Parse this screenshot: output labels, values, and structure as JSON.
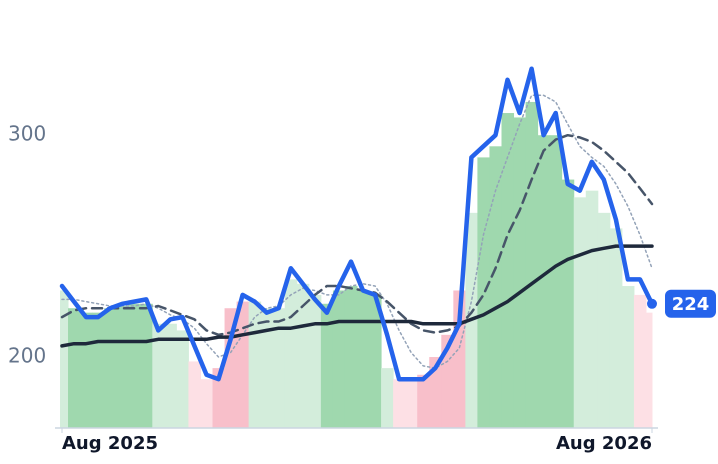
{
  "chart_data": {
    "type": "line",
    "categories": [
      "Aug 2025",
      null,
      null,
      null,
      null,
      null,
      null,
      null,
      null,
      null,
      null,
      null,
      null,
      null,
      null,
      null,
      null,
      null,
      null,
      null,
      null,
      null,
      null,
      null,
      null,
      null,
      null,
      null,
      null,
      null,
      null,
      null,
      null,
      null,
      null,
      null,
      null,
      null,
      null,
      null,
      null,
      null,
      null,
      null,
      null,
      null,
      null,
      null,
      null,
      "Aug 2026"
    ],
    "ylim": [
      168,
      356
    ],
    "yticks": [
      200,
      300
    ],
    "bars": {
      "values": [
        230,
        222,
        220,
        220,
        222,
        223,
        224,
        224,
        215,
        215,
        212,
        198,
        190,
        195,
        222,
        225,
        225,
        222,
        222,
        235,
        233,
        228,
        224,
        230,
        232,
        230,
        228,
        195,
        190,
        190,
        192,
        200,
        210,
        230,
        265,
        290,
        295,
        310,
        308,
        315,
        300,
        300,
        280,
        272,
        275,
        265,
        258,
        232,
        228,
        220
      ],
      "colors": [
        "#d3eddb",
        "#9fd8ae",
        "#9fd8ae",
        "#9fd8ae",
        "#9fd8ae",
        "#9fd8ae",
        "#9fd8ae",
        "#9fd8ae",
        "#d3eddb",
        "#d3eddb",
        "#d3eddb",
        "#fde0e5",
        "#fde0e5",
        "#f8bfca",
        "#f8bfca",
        "#f8bfca",
        "#d3eddb",
        "#d3eddb",
        "#d3eddb",
        "#d3eddb",
        "#d3eddb",
        "#d3eddb",
        "#9fd8ae",
        "#9fd8ae",
        "#9fd8ae",
        "#9fd8ae",
        "#9fd8ae",
        "#d3eddb",
        "#fde0e5",
        "#fde0e5",
        "#f8bfca",
        "#f8bfca",
        "#f8bfca",
        "#f8bfca",
        "#d3eddb",
        "#9fd8ae",
        "#9fd8ae",
        "#9fd8ae",
        "#9fd8ae",
        "#9fd8ae",
        "#9fd8ae",
        "#9fd8ae",
        "#9fd8ae",
        "#d3eddb",
        "#d3eddb",
        "#d3eddb",
        "#d3eddb",
        "#d3eddb",
        "#fde0e5",
        "#fde0e5"
      ]
    },
    "series": [
      {
        "color": "#94a3b8",
        "dash": "dotted",
        "width": 1.5,
        "values": [
          226,
          226,
          225,
          224,
          223,
          223,
          223,
          224,
          222,
          219,
          217,
          213,
          206,
          200,
          202,
          210,
          218,
          222,
          223,
          228,
          231,
          230,
          228,
          228,
          232,
          233,
          232,
          224,
          212,
          202,
          196,
          195,
          198,
          204,
          225,
          255,
          275,
          290,
          305,
          318,
          318,
          315,
          305,
          295,
          290,
          286,
          278,
          268,
          255,
          240
        ]
      },
      {
        "color": "#475569",
        "dash": "dashed",
        "width": 2.5,
        "values": [
          218,
          221,
          222,
          222,
          222,
          222,
          222,
          222,
          223,
          221,
          219,
          217,
          212,
          210,
          211,
          213,
          215,
          216,
          216,
          218,
          223,
          228,
          232,
          232,
          231,
          230,
          229,
          225,
          220,
          215,
          212,
          211,
          212,
          214,
          220,
          228,
          240,
          255,
          266,
          280,
          293,
          298,
          300,
          299,
          297,
          293,
          288,
          283,
          276,
          269
        ]
      },
      {
        "color": "#1e293b",
        "dash": "solid",
        "width": 3.5,
        "values": [
          205,
          206,
          206,
          207,
          207,
          207,
          207,
          207,
          208,
          208,
          208,
          208,
          208,
          209,
          209,
          210,
          211,
          212,
          213,
          213,
          214,
          215,
          215,
          216,
          216,
          216,
          216,
          216,
          216,
          216,
          215,
          215,
          215,
          215,
          217,
          219,
          222,
          225,
          229,
          233,
          237,
          241,
          244,
          246,
          248,
          249,
          250,
          250,
          250,
          250
        ]
      },
      {
        "color": "#2563eb",
        "dash": "solid",
        "width": 4.5,
        "values": [
          232,
          225,
          218,
          218,
          222,
          224,
          225,
          226,
          212,
          217,
          218,
          205,
          192,
          190,
          208,
          228,
          225,
          220,
          222,
          240,
          233,
          226,
          220,
          232,
          243,
          230,
          228,
          210,
          190,
          190,
          190,
          195,
          204,
          215,
          290,
          295,
          300,
          325,
          310,
          330,
          300,
          310,
          278,
          275,
          288,
          280,
          262,
          235,
          235,
          224
        ]
      }
    ]
  }
}
